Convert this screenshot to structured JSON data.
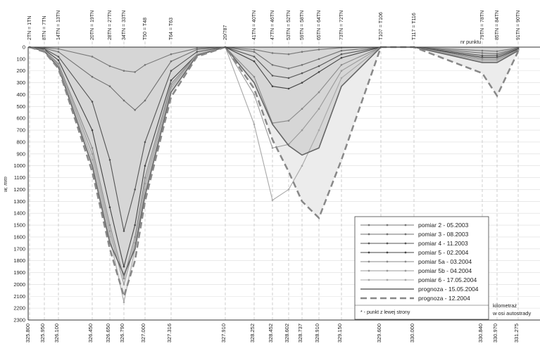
{
  "chart_data": {
    "type": "area",
    "title": "",
    "ylabel": "w, mm",
    "xlabel": "kilometraż w osi autostrady",
    "ylim": [
      0,
      2300
    ],
    "y_inverted": true,
    "y_ticks": [
      0,
      100,
      200,
      300,
      400,
      500,
      600,
      700,
      800,
      900,
      1000,
      1100,
      1200,
      1300,
      1400,
      1500,
      1600,
      1700,
      1800,
      1900,
      2000,
      2100,
      2200,
      2300
    ],
    "x_ticks": [
      325.8,
      325.95,
      326.1,
      326.45,
      326.65,
      326.79,
      327.0,
      327.316,
      327.91,
      328.252,
      328.452,
      328.602,
      328.737,
      328.91,
      329.15,
      329.6,
      330.0,
      330.84,
      330.97,
      331.275
    ],
    "x_tick_labels": [
      "325.800",
      "325.950",
      "326.100",
      "326.450",
      "326.650",
      "326.790",
      "327.000",
      "327.316",
      "327.910",
      "328.252",
      "328.452",
      "328.602",
      "328.737",
      "328.910",
      "329.150",
      "329.600",
      "330.000",
      "330.840",
      "330.970",
      "331.275"
    ],
    "top_labels": [
      {
        "text": "2TN = 1TN",
        "x": 325.8
      },
      {
        "text": "8TN = 7TN",
        "x": 325.95
      },
      {
        "text": "14TN = 13TN",
        "x": 326.1
      },
      {
        "text": "20TN = 19TN",
        "x": 326.45
      },
      {
        "text": "28TN = 27TN",
        "x": 326.65
      },
      {
        "text": "34TN = 33TN",
        "x": 326.79
      },
      {
        "text": "T50 = T48",
        "x": 327.0
      },
      {
        "text": "T64 = T63",
        "x": 327.316
      },
      {
        "text": "20/787",
        "x": 327.91
      },
      {
        "text": "41TN = 40TN",
        "x": 328.252
      },
      {
        "text": "47TN = 46TN",
        "x": 328.452
      },
      {
        "text": "53TN = 52TN",
        "x": 328.602
      },
      {
        "text": "59TN = 58TN",
        "x": 328.737
      },
      {
        "text": "65TN = 64TN",
        "x": 328.91
      },
      {
        "text": "73TN = 72TN",
        "x": 329.15
      },
      {
        "text": "T107 = T106",
        "x": 329.6
      },
      {
        "text": "T117 = T116",
        "x": 330.0
      },
      {
        "text": "79TN = 78TN",
        "x": 330.84
      },
      {
        "text": "85TN = 84TN",
        "x": 330.97
      },
      {
        "text": "91TN = 90TN",
        "x": 331.275
      }
    ],
    "top_axis_caption": "nr punktu",
    "footnote": "* - punkt z lewej strony",
    "grid": true,
    "legend_position": "bottom-right",
    "series": [
      {
        "name": "pomiar 2 - 05.2003",
        "style": "dotted-marker",
        "color": "#777777",
        "x": [
          325.8,
          325.95,
          326.1,
          326.45,
          326.65,
          326.79,
          326.9,
          327.0,
          327.316,
          327.6,
          327.91,
          328.252,
          328.452,
          328.602,
          328.737,
          328.91,
          329.15,
          329.6,
          330.0,
          330.84,
          330.97,
          331.275
        ],
        "y": [
          0,
          5,
          15,
          80,
          160,
          200,
          210,
          150,
          60,
          10,
          0,
          20,
          50,
          60,
          40,
          20,
          5,
          0,
          0,
          30,
          35,
          5
        ]
      },
      {
        "name": "pomiar 3 - 08.2003",
        "style": "dotted-marker",
        "color": "#707070",
        "x": [
          325.8,
          325.95,
          326.1,
          326.45,
          326.65,
          326.79,
          326.9,
          327.0,
          327.316,
          327.6,
          327.91,
          328.252,
          328.452,
          328.602,
          328.737,
          328.91,
          329.15,
          329.6,
          330.0,
          330.84,
          330.97,
          331.275
        ],
        "y": [
          0,
          10,
          40,
          250,
          330,
          450,
          530,
          450,
          120,
          20,
          0,
          40,
          150,
          180,
          150,
          100,
          30,
          0,
          0,
          50,
          55,
          10
        ]
      },
      {
        "name": "pomiar 4 - 11.2003",
        "style": "dotted-marker",
        "color": "#555555",
        "x": [
          325.8,
          325.95,
          326.1,
          326.45,
          326.65,
          326.79,
          326.9,
          327.0,
          327.316,
          327.6,
          327.91,
          328.252,
          328.452,
          328.602,
          328.737,
          328.91,
          329.15,
          329.6,
          330.0,
          330.84,
          330.97,
          331.275
        ],
        "y": [
          0,
          15,
          80,
          460,
          950,
          1550,
          1200,
          800,
          200,
          40,
          0,
          80,
          240,
          260,
          220,
          160,
          60,
          0,
          0,
          70,
          70,
          15
        ]
      },
      {
        "name": "pomiar 5 - 02.2004",
        "style": "dotted-marker",
        "color": "#444444",
        "x": [
          325.8,
          325.95,
          326.1,
          326.45,
          326.65,
          326.79,
          326.9,
          327.0,
          327.316,
          327.6,
          327.91,
          328.252,
          328.452,
          328.602,
          328.737,
          328.91,
          329.15,
          329.6,
          330.0,
          330.84,
          330.97,
          331.275
        ],
        "y": [
          0,
          20,
          110,
          700,
          1350,
          1850,
          1500,
          1000,
          280,
          60,
          0,
          120,
          330,
          350,
          300,
          210,
          90,
          0,
          0,
          85,
          85,
          20
        ]
      },
      {
        "name": "pomiar 5a - 03.2004",
        "style": "dotted-marker",
        "color": "#8a8a8a",
        "x": [
          325.8,
          325.95,
          326.1,
          326.45,
          326.65,
          326.79,
          326.9,
          327.0,
          327.316,
          327.6,
          327.91,
          328.252,
          328.452,
          328.602,
          328.737,
          328.91,
          329.15,
          329.6,
          330.0,
          330.84,
          330.97,
          331.275
        ],
        "y": [
          0,
          25,
          140,
          850,
          1500,
          1950,
          1600,
          1100,
          310,
          60,
          0,
          250,
          640,
          620,
          520,
          380,
          150,
          0,
          0,
          95,
          95,
          25
        ]
      },
      {
        "name": "pomiar 5b - 04.2004",
        "style": "dotted-marker",
        "color": "#9a9a9a",
        "x": [
          325.8,
          325.95,
          326.1,
          326.45,
          326.65,
          326.79,
          326.9,
          327.0,
          327.316,
          327.6,
          327.91,
          328.252,
          328.452,
          328.602,
          328.737,
          328.91,
          329.15,
          329.6,
          330.0,
          330.84,
          330.97,
          331.275
        ],
        "y": [
          0,
          25,
          150,
          900,
          1550,
          2000,
          1650,
          1150,
          330,
          60,
          0,
          400,
          850,
          820,
          700,
          520,
          200,
          0,
          0,
          105,
          105,
          25
        ]
      },
      {
        "name": "pomiar 6 - 17.05.2004",
        "style": "dotted-marker",
        "color": "#a8a8a8",
        "x": [
          325.8,
          325.95,
          326.1,
          326.45,
          326.65,
          326.79,
          326.9,
          327.0,
          327.316,
          327.6,
          327.91,
          328.252,
          328.452,
          328.602,
          328.737,
          328.91,
          329.15,
          329.6,
          330.0,
          330.84,
          330.97,
          331.275
        ],
        "y": [
          0,
          30,
          160,
          950,
          1600,
          2150,
          1700,
          1200,
          350,
          60,
          0,
          650,
          1290,
          1200,
          1000,
          700,
          260,
          0,
          0,
          115,
          115,
          30
        ]
      },
      {
        "name": "prognoza - 15.05.2004",
        "style": "solid",
        "color": "#666666",
        "x": [
          325.8,
          325.95,
          326.1,
          326.45,
          326.65,
          326.79,
          326.9,
          327.0,
          327.316,
          327.6,
          327.91,
          328.252,
          328.452,
          328.602,
          328.737,
          328.91,
          329.15,
          329.6,
          330.0,
          330.84,
          330.97,
          331.275
        ],
        "y": [
          0,
          35,
          170,
          1000,
          1650,
          1920,
          1700,
          1250,
          380,
          70,
          0,
          300,
          650,
          830,
          910,
          850,
          330,
          0,
          0,
          130,
          130,
          30
        ]
      },
      {
        "name": "prognoza - 12.2004",
        "style": "dashed",
        "color": "#888888",
        "x": [
          325.8,
          325.95,
          326.1,
          326.45,
          326.65,
          326.79,
          326.9,
          327.0,
          327.316,
          327.6,
          327.91,
          328.252,
          328.452,
          328.602,
          328.737,
          328.91,
          329.15,
          329.6,
          330.0,
          330.84,
          330.97,
          331.275
        ],
        "y": [
          0,
          40,
          180,
          1050,
          1700,
          2100,
          1800,
          1300,
          420,
          80,
          0,
          350,
          780,
          1050,
          1300,
          1440,
          950,
          0,
          0,
          220,
          410,
          35
        ]
      }
    ]
  }
}
